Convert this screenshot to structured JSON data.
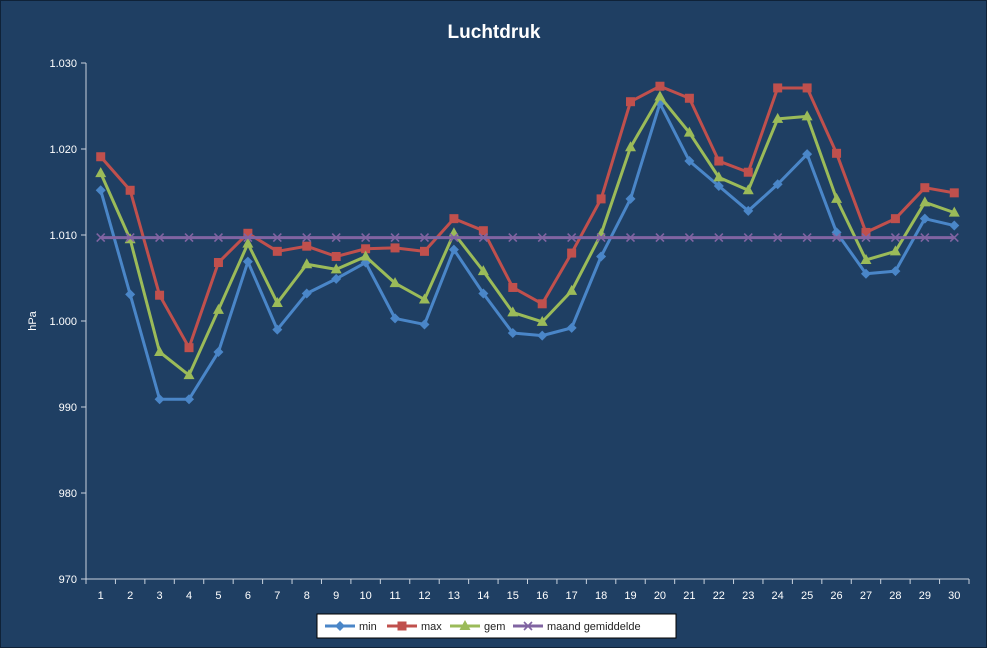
{
  "chart_data": {
    "type": "line",
    "title": "Luchtdruk",
    "xlabel": "",
    "ylabel": "hPa",
    "ylim": [
      970,
      1030
    ],
    "yticks": [
      970,
      980,
      990,
      1000,
      1010,
      1020,
      1030
    ],
    "ytick_labels": [
      "970",
      "980",
      "990",
      "1.000",
      "1.010",
      "1.020",
      "1.030"
    ],
    "categories": [
      "1",
      "2",
      "3",
      "4",
      "5",
      "6",
      "7",
      "8",
      "9",
      "10",
      "11",
      "12",
      "13",
      "14",
      "15",
      "16",
      "17",
      "18",
      "19",
      "20",
      "21",
      "22",
      "23",
      "24",
      "25",
      "26",
      "27",
      "28",
      "29",
      "30"
    ],
    "grid": false,
    "legend": "bottom",
    "series": [
      {
        "name": "min",
        "color": "#4a86c8",
        "marker": "diamond",
        "values": [
          1015.2,
          1003.1,
          990.9,
          990.9,
          996.4,
          1006.9,
          999.0,
          1003.2,
          1004.9,
          1006.8,
          1000.3,
          999.6,
          1008.3,
          1003.2,
          998.6,
          998.3,
          999.2,
          1007.5,
          1014.2,
          1025.3,
          1018.6,
          1015.7,
          1012.8,
          1015.9,
          1019.4,
          1010.3,
          1005.5,
          1005.8,
          1011.9,
          1011.1
        ]
      },
      {
        "name": "max",
        "color": "#c0504d",
        "marker": "square",
        "values": [
          1019.1,
          1015.2,
          1003.0,
          996.9,
          1006.8,
          1010.2,
          1008.1,
          1008.7,
          1007.5,
          1008.4,
          1008.5,
          1008.1,
          1011.9,
          1010.5,
          1003.9,
          1002.0,
          1007.9,
          1014.2,
          1025.5,
          1027.3,
          1025.9,
          1018.6,
          1017.3,
          1027.1,
          1027.1,
          1019.5,
          1010.3,
          1011.9,
          1015.5,
          1014.9
        ]
      },
      {
        "name": "gem",
        "color": "#9bbb59",
        "marker": "triangle",
        "values": [
          1017.2,
          1009.5,
          996.4,
          993.7,
          1001.3,
          1009.0,
          1002.1,
          1006.6,
          1006.0,
          1007.5,
          1004.4,
          1002.5,
          1010.2,
          1005.8,
          1001.0,
          999.9,
          1003.5,
          1010.1,
          1020.2,
          1026.1,
          1021.9,
          1016.7,
          1015.2,
          1023.5,
          1023.8,
          1014.2,
          1007.1,
          1008.1,
          1013.8,
          1012.6
        ]
      },
      {
        "name": "maand gemiddelde",
        "color": "#8064a2",
        "marker": "x",
        "values": [
          1009.7,
          1009.7,
          1009.7,
          1009.7,
          1009.7,
          1009.7,
          1009.7,
          1009.7,
          1009.7,
          1009.7,
          1009.7,
          1009.7,
          1009.7,
          1009.7,
          1009.7,
          1009.7,
          1009.7,
          1009.7,
          1009.7,
          1009.7,
          1009.7,
          1009.7,
          1009.7,
          1009.7,
          1009.7,
          1009.7,
          1009.7,
          1009.7,
          1009.7,
          1009.7
        ]
      }
    ]
  }
}
